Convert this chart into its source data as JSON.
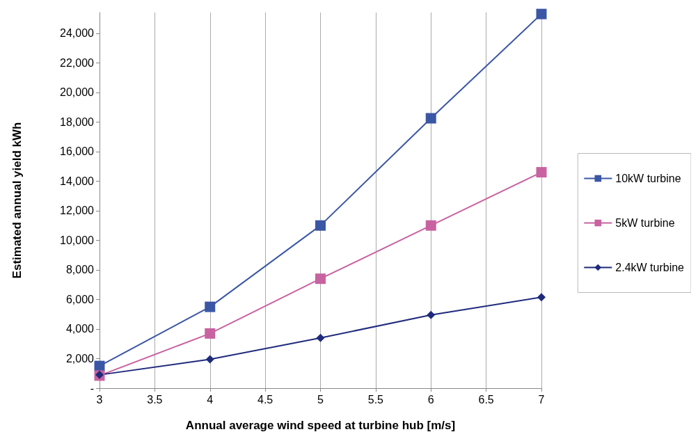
{
  "chart_data": {
    "type": "line",
    "xlabel": "Annual average wind speed at turbine hub [m/s]",
    "ylabel": "Estimated annual yield kWh",
    "x": [
      3,
      4,
      5,
      6,
      7
    ],
    "series": [
      {
        "name": "10kW turbine",
        "color": "#3b56a5",
        "marker": "square",
        "values": [
          1500,
          5500,
          11000,
          18250,
          25300
        ]
      },
      {
        "name": "5kW turbine",
        "color": "#c862a0",
        "marker": "square",
        "values": [
          850,
          3700,
          7400,
          11000,
          14600
        ]
      },
      {
        "name": "2.4kW turbine",
        "color": "#1f2a7c",
        "marker": "diamond",
        "values": [
          900,
          1950,
          3400,
          4950,
          6150
        ]
      }
    ],
    "xlim": [
      3,
      7
    ],
    "xticks": [
      3,
      3.5,
      4,
      4.5,
      5,
      5.5,
      6,
      6.5,
      7
    ],
    "ylim": [
      0,
      25400
    ],
    "yticks": [
      {
        "value": 0,
        "label": "-"
      },
      {
        "value": 2000,
        "label": "2,000"
      },
      {
        "value": 4000,
        "label": "4,000"
      },
      {
        "value": 6000,
        "label": "6,000"
      },
      {
        "value": 8000,
        "label": "8,000"
      },
      {
        "value": 10000,
        "label": "10,000"
      },
      {
        "value": 12000,
        "label": "12,000"
      },
      {
        "value": 14000,
        "label": "14,000"
      },
      {
        "value": 16000,
        "label": "16,000"
      },
      {
        "value": 18000,
        "label": "18,000"
      },
      {
        "value": 20000,
        "label": "20,000"
      },
      {
        "value": 22000,
        "label": "22,000"
      },
      {
        "value": 24000,
        "label": "24,000"
      }
    ],
    "grid": "x",
    "legend": "right",
    "line_style": "solid"
  }
}
